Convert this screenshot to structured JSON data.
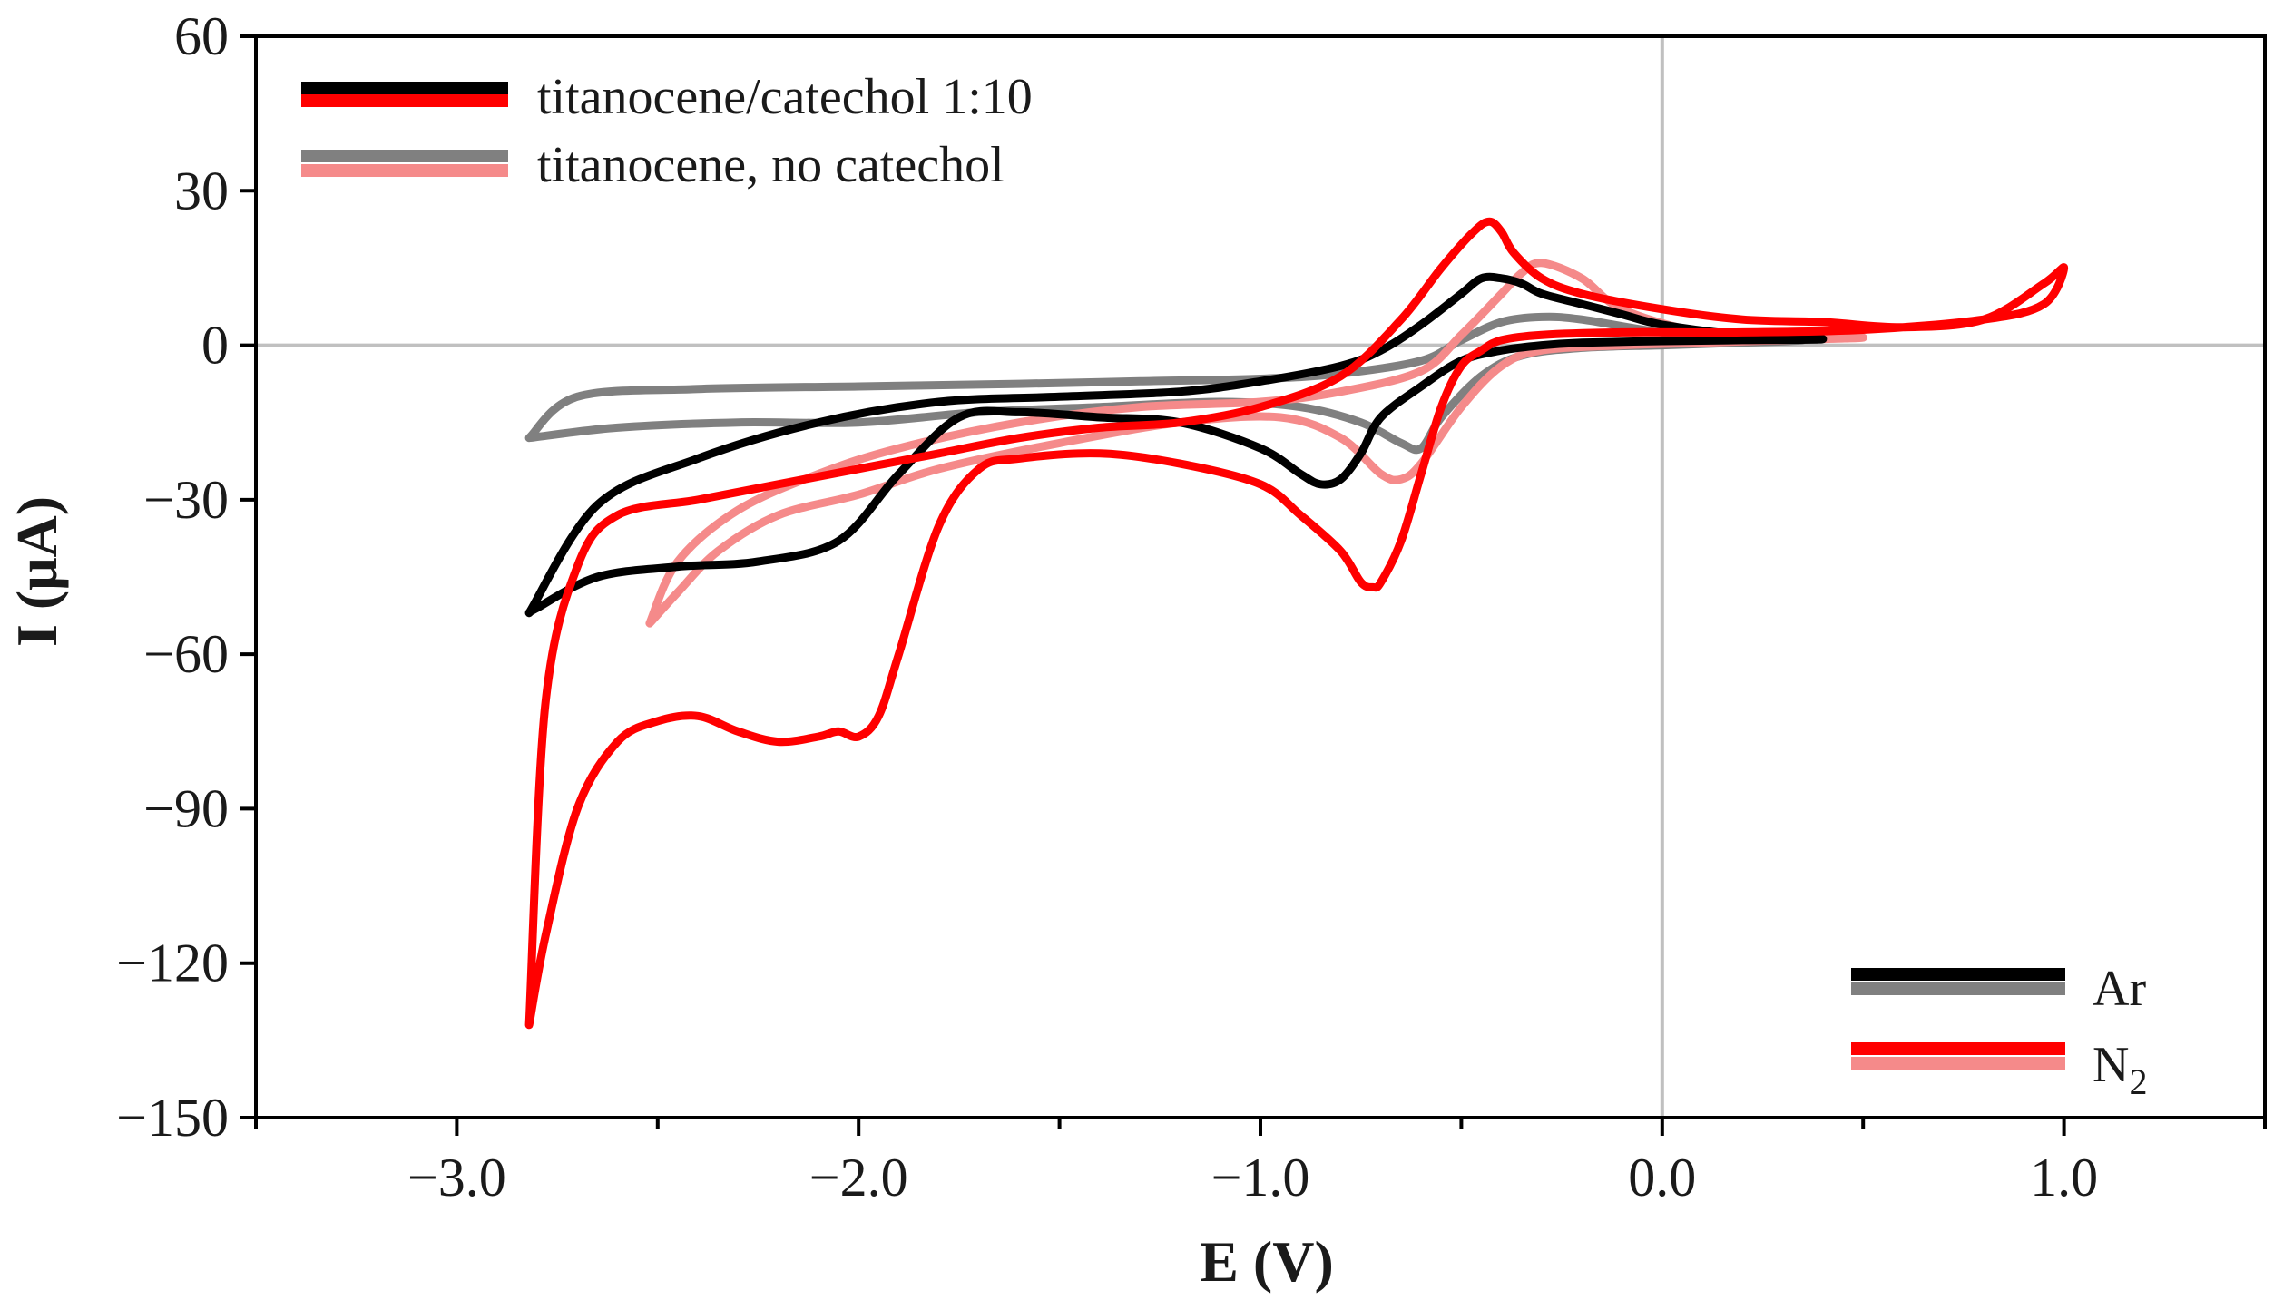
{
  "chart_data": {
    "type": "line",
    "title": "",
    "xlabel": "E (V)",
    "ylabel": "I (μA)",
    "xlim": [
      -3.5,
      1.5
    ],
    "ylim": [
      -150,
      60
    ],
    "x_ticks": [
      -3.0,
      -2.0,
      -1.0,
      0.0,
      1.0
    ],
    "x_tick_labels": [
      "−3.0",
      "−2.0",
      "−1.0",
      "0.0",
      "1.0"
    ],
    "y_ticks": [
      60,
      30,
      0,
      -30,
      -60,
      -90,
      -120,
      -150
    ],
    "y_tick_labels": [
      "60",
      "30",
      "0",
      "−30",
      "−60",
      "−90",
      "−120",
      "−150"
    ],
    "reference_lines": {
      "x": 0,
      "y": 0
    },
    "legend_top_left": [
      {
        "label": "titanocene/catechol 1:10",
        "colors": [
          "#000000",
          "#ff0000"
        ]
      },
      {
        "label": "titanocene, no catechol",
        "colors": [
          "#808080",
          "#f58a8a"
        ]
      }
    ],
    "legend_bottom_right": [
      {
        "label": "Ar",
        "colors": [
          "#000000",
          "#808080"
        ]
      },
      {
        "label": "N",
        "subscript": "2",
        "colors": [
          "#ff0000",
          "#f58a8a"
        ]
      }
    ],
    "series": [
      {
        "name": "titanocene, no catechol (Ar)",
        "color": "#808080",
        "x": [
          -2.82,
          -2.6,
          -2.3,
          -2.0,
          -1.7,
          -1.4,
          -1.1,
          -0.9,
          -0.75,
          -0.65,
          -0.6,
          -0.55,
          -0.45,
          -0.35,
          -0.2,
          0.0,
          0.2,
          0.35,
          0.2,
          0.0,
          -0.2,
          -0.3,
          -0.4,
          -0.5,
          -0.6,
          -0.8,
          -1.0,
          -1.3,
          -1.6,
          -2.0,
          -2.4,
          -2.7,
          -2.82
        ],
        "y": [
          -18,
          -16,
          -15,
          -15,
          -13,
          -12,
          -11,
          -12,
          -15,
          -19,
          -20,
          -14,
          -6,
          -2,
          -0.5,
          0,
          0.5,
          1,
          1.5,
          2.5,
          5,
          5.5,
          4.5,
          1,
          -3,
          -5.5,
          -6.5,
          -7,
          -7.5,
          -8,
          -8.5,
          -10,
          -18
        ]
      },
      {
        "name": "titanocene, no catechol (N2)",
        "color": "#f58a8a",
        "x": [
          -2.52,
          -2.45,
          -2.35,
          -2.2,
          -2.0,
          -1.8,
          -1.5,
          -1.2,
          -0.95,
          -0.8,
          -0.7,
          -0.65,
          -0.6,
          -0.5,
          -0.4,
          -0.3,
          -0.1,
          0.1,
          0.3,
          0.5,
          0.3,
          0.1,
          -0.1,
          -0.2,
          -0.3,
          -0.35,
          -0.4,
          -0.5,
          -0.6,
          -0.8,
          -1.0,
          -1.3,
          -1.6,
          -1.9,
          -2.1,
          -2.3,
          -2.45,
          -2.52
        ],
        "y": [
          -54,
          -48,
          -40,
          -33,
          -29,
          -24,
          -19,
          -15,
          -14,
          -18,
          -25,
          -26,
          -23,
          -12,
          -4,
          -1,
          0,
          0.5,
          1,
          1.5,
          1.8,
          2.5,
          7,
          13,
          16,
          14,
          10,
          2,
          -5,
          -9,
          -11,
          -12,
          -15,
          -20,
          -25,
          -32,
          -42,
          -54
        ]
      },
      {
        "name": "titanocene/catechol 1:10 (Ar)",
        "color": "#000000",
        "x": [
          -2.82,
          -2.8,
          -2.65,
          -2.45,
          -2.25,
          -2.05,
          -1.9,
          -1.75,
          -1.6,
          -1.4,
          -1.2,
          -1.0,
          -0.9,
          -0.85,
          -0.8,
          -0.75,
          -0.7,
          -0.6,
          -0.5,
          -0.4,
          -0.3,
          -0.2,
          0.0,
          0.2,
          0.4,
          0.2,
          0.0,
          -0.1,
          -0.2,
          -0.3,
          -0.35,
          -0.4,
          -0.45,
          -0.5,
          -0.6,
          -0.7,
          -0.8,
          -1.0,
          -1.2,
          -1.5,
          -1.8,
          -2.1,
          -2.4,
          -2.65,
          -2.82
        ],
        "y": [
          -52,
          -51,
          -45,
          -43,
          -42,
          -38,
          -25,
          -14,
          -13,
          -14,
          -15,
          -20,
          -25,
          -27,
          -26,
          -21,
          -14,
          -8,
          -3,
          -1,
          0,
          0.5,
          0.8,
          1,
          1.2,
          2,
          4,
          6,
          8,
          10,
          12,
          13,
          13,
          10,
          4,
          -1,
          -4,
          -7,
          -9,
          -10,
          -11,
          -15,
          -22,
          -31,
          -52
        ]
      },
      {
        "name": "titanocene/catechol 1:10 (N2)",
        "color": "#ff0000",
        "x": [
          -2.82,
          -2.78,
          -2.7,
          -2.6,
          -2.5,
          -2.4,
          -2.3,
          -2.2,
          -2.1,
          -2.05,
          -2.0,
          -1.95,
          -1.9,
          -1.8,
          -1.7,
          -1.6,
          -1.4,
          -1.2,
          -1.0,
          -0.9,
          -0.8,
          -0.75,
          -0.72,
          -0.7,
          -0.65,
          -0.6,
          -0.55,
          -0.5,
          -0.45,
          -0.4,
          -0.3,
          -0.1,
          0.2,
          0.5,
          0.8,
          0.95,
          1.0,
          0.95,
          0.8,
          0.6,
          0.4,
          0.2,
          0.0,
          -0.2,
          -0.3,
          -0.37,
          -0.4,
          -0.43,
          -0.47,
          -0.55,
          -0.65,
          -0.8,
          -1.0,
          -1.2,
          -1.4,
          -1.6,
          -1.8,
          -2.0,
          -2.2,
          -2.4,
          -2.6,
          -2.7,
          -2.78,
          -2.82
        ],
        "y": [
          -132,
          -115,
          -90,
          -77,
          -73,
          -72,
          -75,
          -77,
          -76,
          -75,
          -76,
          -72,
          -60,
          -35,
          -24,
          -22,
          -21,
          -23,
          -27,
          -33,
          -40,
          -46,
          -47,
          -46,
          -38,
          -25,
          -12,
          -4,
          -1,
          1,
          2,
          2.5,
          2.5,
          3,
          5,
          8,
          15,
          12,
          5,
          3.5,
          4.5,
          5,
          7,
          10,
          13,
          18,
          22,
          24,
          22,
          15,
          5,
          -6,
          -12,
          -15,
          -16,
          -18,
          -21,
          -24,
          -27,
          -30,
          -33,
          -43,
          -70,
          -132
        ]
      }
    ]
  }
}
